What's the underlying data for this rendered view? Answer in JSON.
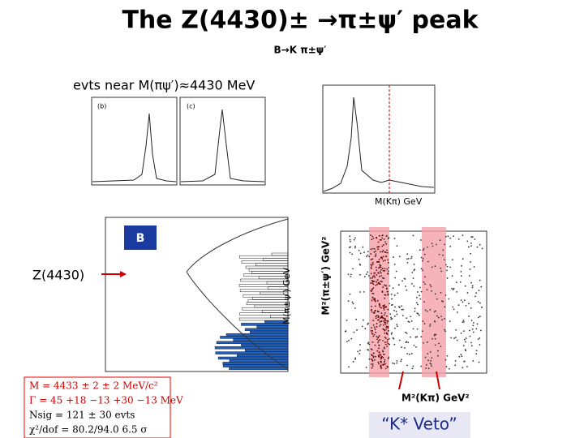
{
  "title": "The Z(4430)± →π±ψ′ peak",
  "subtitle": "B→K π±ψ′",
  "selection_label": "evts near M(πψ′)≈4430 MeV",
  "kpi_axis_label": "M(Kπ) GeV",
  "z_label": "Z(4430)",
  "mass_axis_label": "M(π±ψ′) GeV",
  "dalitz_y_label": "M²(π±ψ′) GeV²",
  "dalitz_x_label": "M²(Kπ) GeV²",
  "veto_label": "“K* Veto”",
  "fit_results": [
    "M = 4433 ± 2 ± 2 MeV/c²",
    "Γ = 45 +18 −13 +30 −13 MeV",
    "Nsig = 121 ± 30 evts",
    "χ²/dof = 80.2/94.0   6.5 σ"
  ]
}
